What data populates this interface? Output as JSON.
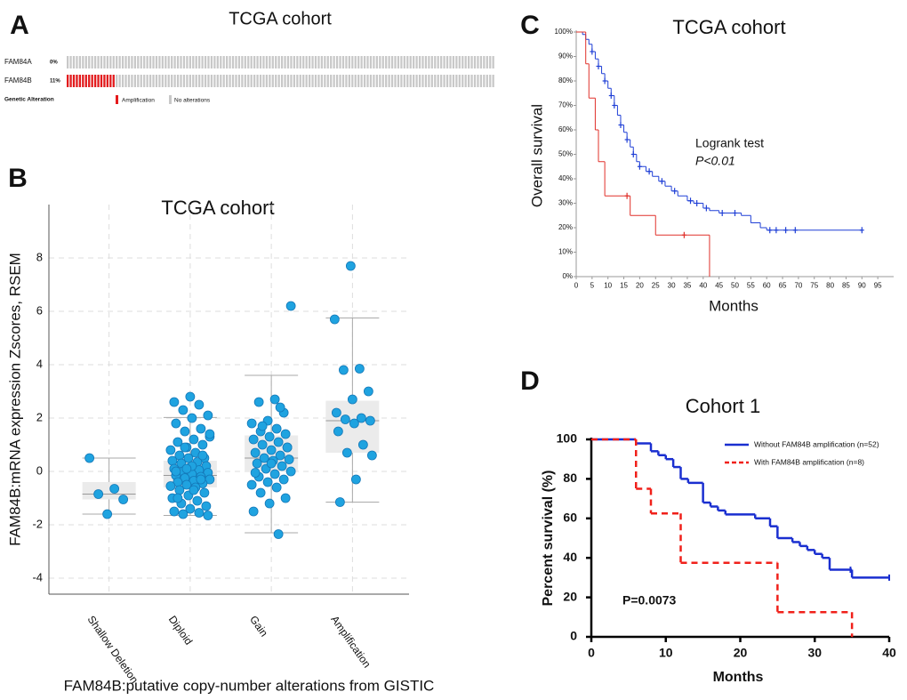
{
  "chart_data": [
    {
      "type": "oncoprint",
      "panel": "A",
      "title": "TCGA cohort",
      "categories": [
        "FAM84A",
        "FAM84B"
      ],
      "values": [
        0,
        11
      ],
      "value_labels": [
        "0%",
        "11%"
      ],
      "color": "#e41a1c",
      "base_color": "#c8c8c8",
      "legend_title": "Genetic Alteration",
      "legend": [
        "Amplification",
        "No alterations"
      ]
    },
    {
      "type": "box",
      "panel": "B",
      "title": "TCGA cohort",
      "xlabel": "FAM84B:putative copy-number alterations from GISTIC",
      "ylabel": "FAM84B:mRNA expression Zscores, RSEM",
      "categories": [
        "Shallow Deletion",
        "Diploid",
        "Gain",
        "Amplification"
      ],
      "ylim": [
        -4.6,
        10
      ],
      "yticks": [
        -4,
        -2,
        0,
        2,
        4,
        6,
        8
      ],
      "grid": true,
      "color": "#1fa3e0",
      "boxes": [
        {
          "low": -1.6,
          "q1": -1.05,
          "median": -0.85,
          "q3": -0.4,
          "high": 0.5
        },
        {
          "low": -1.65,
          "q1": -0.6,
          "median": -0.15,
          "q3": 0.4,
          "high": 2.02
        },
        {
          "low": -2.3,
          "q1": 0,
          "median": 0.5,
          "q3": 1.35,
          "high": 3.6
        },
        {
          "low": -1.15,
          "q1": 0.7,
          "median": 1.9,
          "q3": 2.65,
          "high": 5.75
        }
      ],
      "points": [
        [
          0.5,
          -0.65,
          -0.85,
          -1.05,
          -1.6
        ],
        [
          2.8,
          2.6,
          2.5,
          2.3,
          2.1,
          2.0,
          1.8,
          1.6,
          1.5,
          1.3,
          1.2,
          1.1,
          1.0,
          0.9,
          0.8,
          0.7,
          0.6,
          0.5,
          0.5,
          0.4,
          0.35,
          0.3,
          0.2,
          0.15,
          0.1,
          0.05,
          0,
          -0.05,
          -0.1,
          -0.15,
          -0.2,
          -0.25,
          -0.3,
          -0.35,
          -0.4,
          -0.45,
          -0.5,
          -0.55,
          -0.6,
          -0.7,
          -0.8,
          -0.9,
          -1.0,
          -1.1,
          -1.2,
          -1.3,
          -1.4,
          -1.5,
          -1.55,
          -1.6,
          -1.65,
          0.2,
          0.0,
          -0.3,
          0.9,
          1.4,
          -0.7,
          -1.0,
          0.6,
          0.1
        ],
        [
          6.2,
          2.7,
          2.6,
          2.2,
          1.9,
          1.8,
          1.6,
          1.5,
          1.4,
          1.3,
          1.2,
          1.1,
          1.0,
          0.9,
          0.8,
          0.7,
          0.6,
          0.5,
          0.45,
          0.4,
          0.3,
          0.2,
          0.1,
          0,
          -0.1,
          -0.2,
          -0.3,
          -0.4,
          -0.5,
          -0.6,
          -0.8,
          -1.0,
          -1.2,
          -1.5,
          -2.35,
          1.7,
          0.9,
          0.3,
          -0.05,
          2.4
        ],
        [
          7.7,
          5.7,
          3.85,
          3.8,
          3.0,
          2.7,
          2.2,
          2.0,
          1.95,
          1.9,
          1.8,
          1.5,
          1.0,
          0.7,
          0.6,
          -0.3,
          -1.15
        ]
      ]
    },
    {
      "type": "survival",
      "panel": "C",
      "title": "TCGA cohort",
      "xlabel": "Months",
      "ylabel": "Overall survival",
      "annotations": [
        "Logrank test",
        "P<0.01"
      ],
      "xlim": [
        0,
        100
      ],
      "xticks": [
        0,
        5,
        10,
        15,
        20,
        25,
        30,
        35,
        40,
        45,
        50,
        55,
        60,
        65,
        70,
        75,
        80,
        85,
        90,
        95
      ],
      "ylim": [
        0,
        100
      ],
      "yticks": [
        {
          "value": 0,
          "label": "0%"
        },
        {
          "value": 10,
          "label": "10%"
        },
        {
          "value": 20,
          "label": "20%"
        },
        {
          "value": 30,
          "label": "30%"
        },
        {
          "value": 40,
          "label": "40%"
        },
        {
          "value": 50,
          "label": "50%"
        },
        {
          "value": 60,
          "label": "60%"
        },
        {
          "value": 70,
          "label": "70%"
        },
        {
          "value": 80,
          "label": "80%"
        },
        {
          "value": 90,
          "label": "90%"
        },
        {
          "value": 100,
          "label": "100%"
        }
      ],
      "series": [
        {
          "color": "#1f3fd6",
          "x": [
            0,
            2,
            3,
            4,
            5,
            6,
            7,
            8,
            9,
            10,
            11,
            12,
            13,
            14,
            15,
            16,
            17,
            18,
            19,
            20,
            22,
            24,
            26,
            28,
            30,
            32,
            35,
            37,
            40,
            42,
            45,
            52,
            55,
            58,
            60,
            90
          ],
          "values": [
            100,
            99,
            97,
            95,
            92,
            89,
            86,
            83,
            80,
            77,
            74,
            70,
            66,
            62,
            59,
            56,
            53,
            50,
            47,
            45,
            43,
            41,
            39,
            37,
            35,
            33,
            31,
            30,
            28,
            27,
            26,
            25,
            22,
            20,
            19,
            19
          ],
          "censor_x": [
            5,
            7,
            9,
            11,
            12,
            14,
            16,
            18,
            20,
            23,
            27,
            31,
            36,
            38,
            41,
            46,
            50,
            61,
            63,
            66,
            69,
            90
          ],
          "censor_y": [
            92,
            86,
            80,
            74,
            70,
            62,
            56,
            50,
            45,
            43,
            39,
            35,
            31,
            30,
            28,
            26,
            26,
            19,
            19,
            19,
            19,
            19
          ]
        },
        {
          "color": "#e0302a",
          "x": [
            0,
            2,
            3,
            4,
            6,
            7,
            9,
            17,
            25,
            42
          ],
          "values": [
            100,
            100,
            87,
            73,
            60,
            47,
            33,
            25,
            17,
            0
          ],
          "censor_x": [
            16,
            34
          ],
          "censor_y": [
            33,
            17
          ]
        }
      ]
    },
    {
      "type": "survival",
      "panel": "D",
      "title": "Cohort 1",
      "xlabel": "Months",
      "ylabel": "Percent survival (%)",
      "annotations": [
        "P=0.0073"
      ],
      "xlim": [
        0,
        40
      ],
      "xticks": [
        0,
        10,
        20,
        30,
        40
      ],
      "ylim": [
        0,
        100
      ],
      "yticks": [
        0,
        20,
        40,
        60,
        80,
        100
      ],
      "series": [
        {
          "name": "Without FAM84B amplification (n=52)",
          "color": "#1a2fd0",
          "x": [
            0,
            6,
            8,
            9,
            10,
            11,
            12,
            13,
            15,
            16,
            17,
            18,
            22,
            24,
            25,
            27,
            28,
            29,
            30,
            31,
            32,
            35,
            40
          ],
          "values": [
            100,
            98,
            94,
            92,
            90,
            86,
            80,
            78,
            68,
            66,
            64,
            62,
            60,
            56,
            50,
            48,
            46,
            44,
            42,
            40,
            34,
            30,
            30
          ],
          "censor_x": [
            34.8,
            40
          ],
          "censor_y": [
            34,
            30
          ]
        },
        {
          "name": "With FAM84B amplification (n=8)",
          "color": "#f0201a",
          "dash": true,
          "x": [
            0,
            6,
            8,
            12,
            25,
            35
          ],
          "values": [
            100,
            75,
            62.5,
            37.5,
            12.5,
            0
          ]
        }
      ]
    }
  ]
}
